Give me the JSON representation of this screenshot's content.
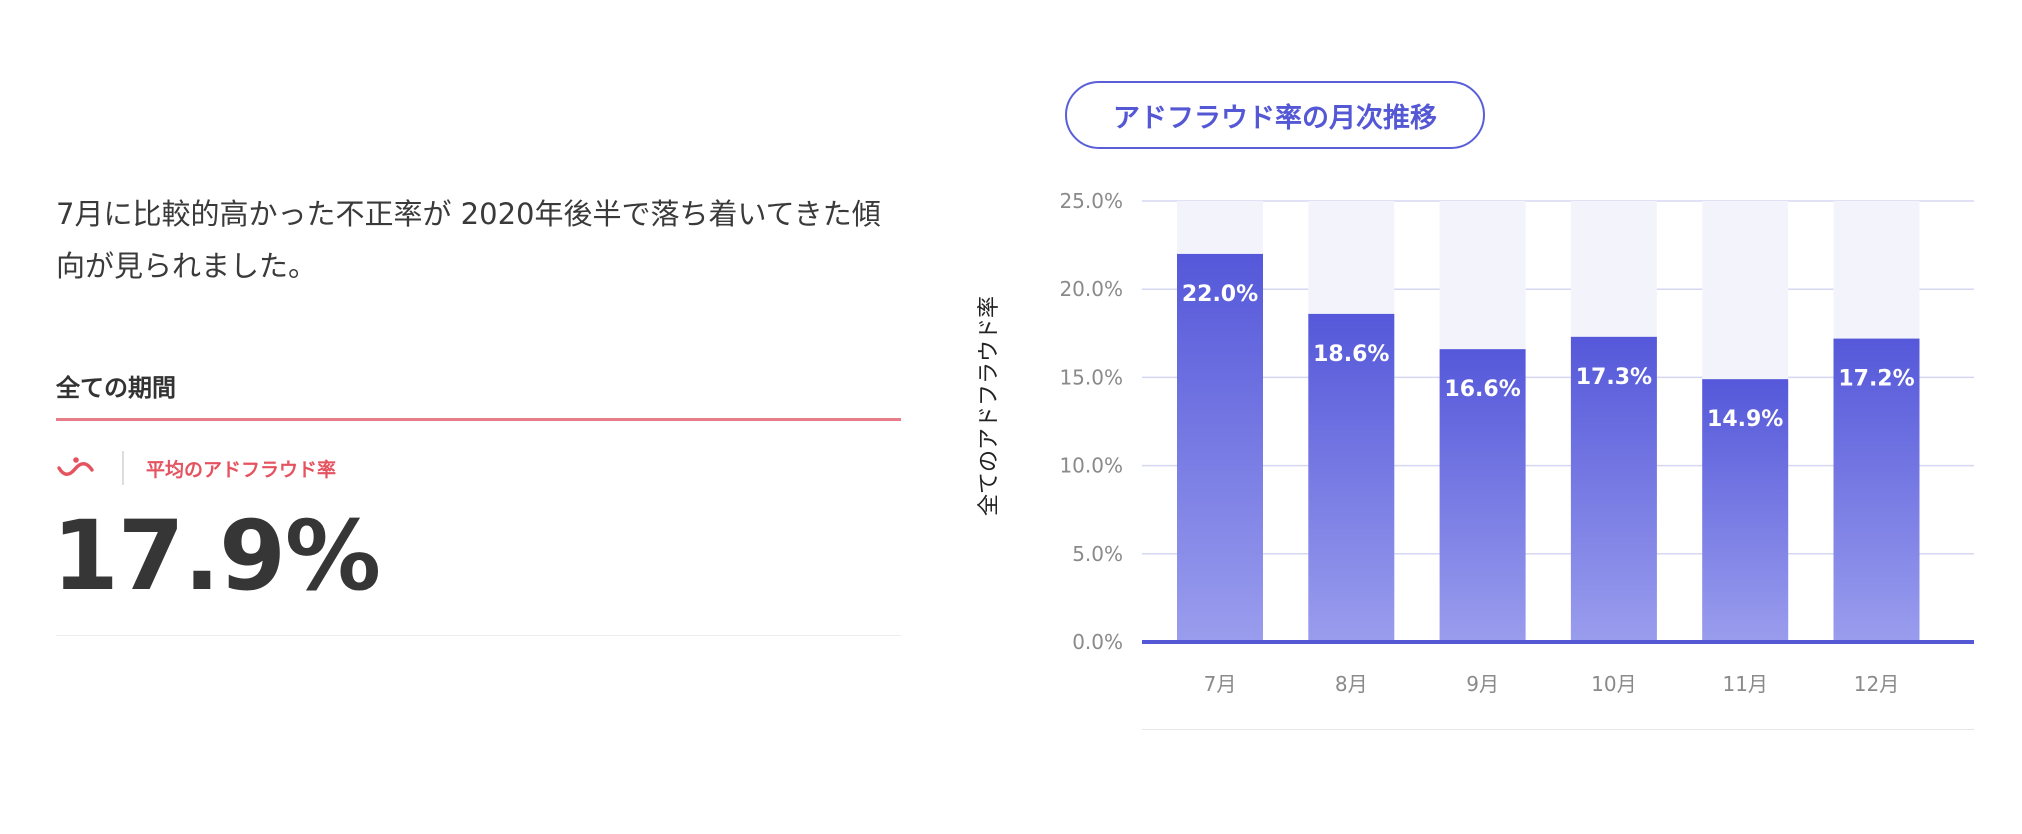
{
  "summary": {
    "lead": "7月に比較的高かった不正率が 2020年後半で落ち着いてきた傾向が見られました。",
    "period_label": "全ての期間",
    "stat_label": "平均のアドフラウド率",
    "stat_value": "17.9%",
    "icon": "wave-icon",
    "accent_color": "#e4535f"
  },
  "chart_data": {
    "type": "bar",
    "title": "アドフラウド率の月次推移",
    "ylabel": "全てのアドフラウド率",
    "xlabel": "",
    "categories": [
      "7月",
      "8月",
      "9月",
      "10月",
      "11月",
      "12月"
    ],
    "values": [
      22.0,
      18.6,
      16.6,
      17.3,
      14.9,
      17.2
    ],
    "value_labels": [
      "22.0%",
      "18.6%",
      "16.6%",
      "17.3%",
      "14.9%",
      "17.2%"
    ],
    "ylim": [
      0,
      25
    ],
    "yticks": [
      "0.0%",
      "5.0%",
      "10.0%",
      "15.0%",
      "20.0%",
      "25.0%"
    ],
    "grid": true,
    "bar_color_top": "#5558d9",
    "bar_color_bottom": "#9a9ded",
    "track_color": "#f3f4fb"
  }
}
